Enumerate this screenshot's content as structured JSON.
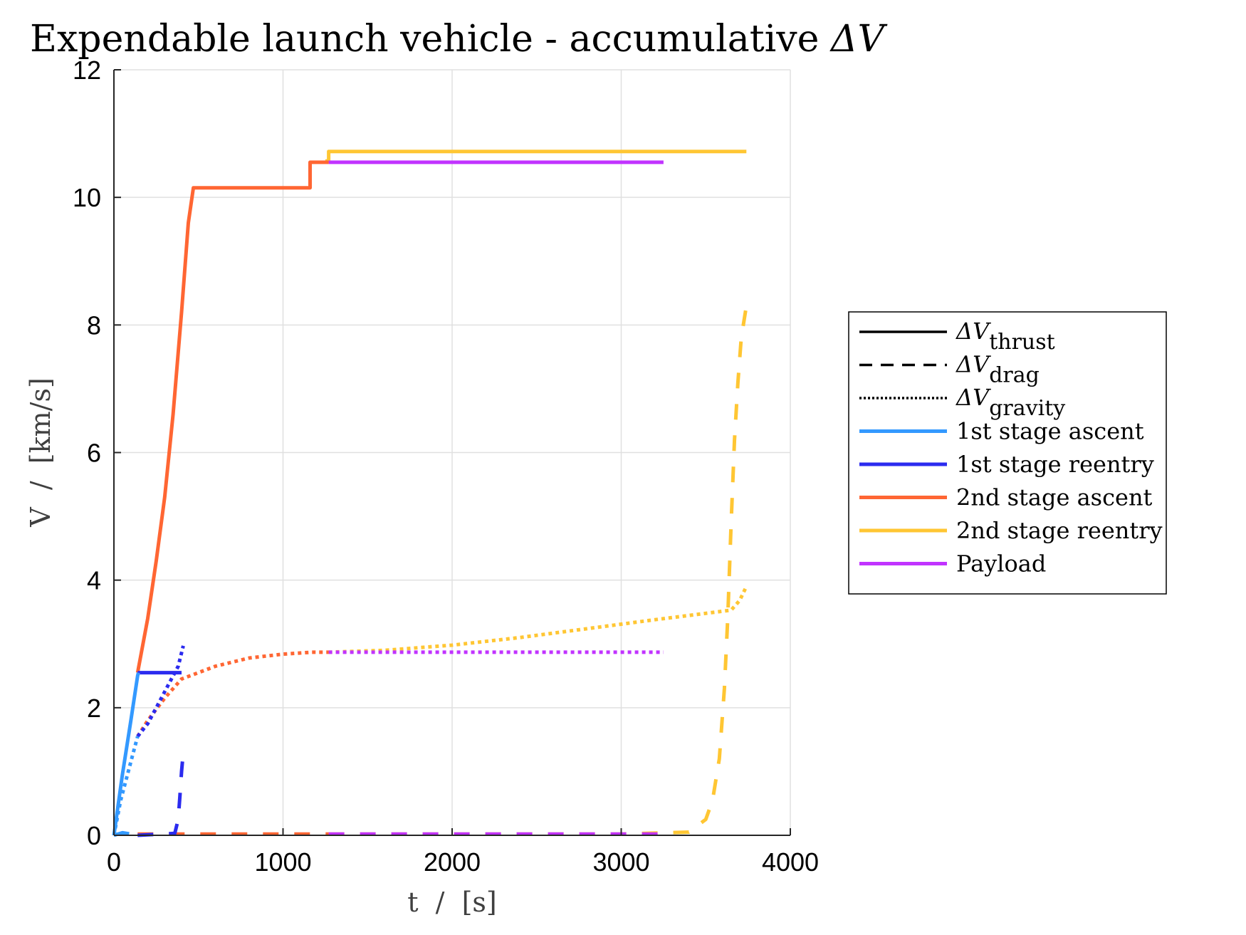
{
  "chart_data": {
    "type": "line",
    "title": "Expendable launch vehicle - accumulative ΔV",
    "title_parts": {
      "text": "Expendable launch vehicle - accumulative ",
      "symbol": "ΔV"
    },
    "xlabel": "t  /  [s]",
    "ylabel": "V  /  [km/s]",
    "xlim": [
      0,
      4000
    ],
    "ylim": [
      0,
      12
    ],
    "xticks": [
      0,
      1000,
      2000,
      3000,
      4000
    ],
    "yticks": [
      0,
      2,
      4,
      6,
      8,
      10,
      12
    ],
    "xtick_labels": [
      "0",
      "1000",
      "2000",
      "3000",
      "4000"
    ],
    "ytick_labels": [
      "0",
      "2",
      "4",
      "6",
      "8",
      "10",
      "12"
    ],
    "grid": true,
    "legend_position": "right",
    "legend_styles": [
      {
        "base": "ΔV",
        "sub": "thrust",
        "dash": "solid"
      },
      {
        "base": "ΔV",
        "sub": "drag",
        "dash": "dashed"
      },
      {
        "base": "ΔV",
        "sub": "gravity",
        "dash": "dotted"
      }
    ],
    "legend_colors": [
      {
        "name": "1st stage ascent",
        "color": "#3399ff"
      },
      {
        "name": "1st stage reentry",
        "color": "#2b2bef"
      },
      {
        "name": "2nd stage ascent",
        "color": "#ff6633"
      },
      {
        "name": "2nd stage reentry",
        "color": "#ffc633"
      },
      {
        "name": "Payload",
        "color": "#c133ff"
      }
    ],
    "series": [
      {
        "group": "2nd stage reentry",
        "kind": "gravity",
        "color": "#ffc633",
        "x": [
          1270,
          1600,
          2000,
          2400,
          2800,
          3200,
          3500,
          3650,
          3700,
          3740
        ],
        "y": [
          2.87,
          2.9,
          2.98,
          3.1,
          3.24,
          3.38,
          3.48,
          3.53,
          3.68,
          3.9
        ]
      },
      {
        "group": "2nd stage reentry",
        "kind": "drag",
        "color": "#ffc633",
        "x": [
          1270,
          2000,
          3000,
          3400,
          3500,
          3540,
          3580,
          3610,
          3630,
          3650,
          3670,
          3690,
          3710,
          3740
        ],
        "y": [
          0.02,
          0.02,
          0.02,
          0.05,
          0.25,
          0.55,
          1.2,
          2.3,
          3.4,
          4.9,
          6.2,
          7.1,
          7.8,
          8.3
        ]
      },
      {
        "group": "2nd stage reentry",
        "kind": "thrust",
        "color": "#ffc633",
        "x": [
          1250,
          1270,
          1270,
          3740
        ],
        "y": [
          10.57,
          10.57,
          10.72,
          10.72
        ]
      },
      {
        "group": "Payload",
        "kind": "gravity",
        "color": "#c133ff",
        "x": [
          1270,
          3250
        ],
        "y": [
          2.87,
          2.87
        ]
      },
      {
        "group": "Payload",
        "kind": "drag",
        "color": "#c133ff",
        "x": [
          1270,
          3250
        ],
        "y": [
          0.02,
          0.02
        ]
      },
      {
        "group": "Payload",
        "kind": "thrust",
        "color": "#c133ff",
        "x": [
          1270,
          3250
        ],
        "y": [
          10.55,
          10.55
        ]
      },
      {
        "group": "2nd stage ascent",
        "kind": "gravity",
        "color": "#ff6633",
        "x": [
          140,
          200,
          300,
          400,
          600,
          800,
          1000,
          1170,
          1270
        ],
        "y": [
          1.55,
          1.8,
          2.15,
          2.45,
          2.65,
          2.78,
          2.84,
          2.87,
          2.87
        ]
      },
      {
        "group": "2nd stage ascent",
        "kind": "drag",
        "color": "#ff6633",
        "x": [
          140,
          1270
        ],
        "y": [
          0.02,
          0.02
        ]
      },
      {
        "group": "2nd stage ascent",
        "kind": "thrust",
        "color": "#ff6633",
        "x": [
          140,
          200,
          250,
          300,
          350,
          400,
          440,
          470,
          1160,
          1160,
          1200,
          1270
        ],
        "y": [
          2.55,
          3.4,
          4.3,
          5.3,
          6.6,
          8.2,
          9.6,
          10.15,
          10.15,
          10.55,
          10.55,
          10.55
        ]
      },
      {
        "group": "1st stage reentry",
        "kind": "gravity",
        "color": "#2b2bef",
        "x": [
          140,
          200,
          260,
          320,
          380,
          410
        ],
        "y": [
          1.55,
          1.75,
          2.05,
          2.35,
          2.65,
          2.97
        ]
      },
      {
        "group": "1st stage reentry",
        "kind": "drag",
        "color": "#2b2bef",
        "x": [
          140,
          360,
          380,
          390,
          400,
          410
        ],
        "y": [
          0.0,
          0.03,
          0.25,
          0.6,
          1.0,
          1.3
        ]
      },
      {
        "group": "1st stage reentry",
        "kind": "thrust",
        "color": "#2b2bef",
        "x": [
          140,
          400
        ],
        "y": [
          2.55,
          2.55
        ]
      },
      {
        "group": "1st stage ascent",
        "kind": "gravity",
        "color": "#3399ff",
        "x": [
          0,
          40,
          80,
          110,
          140
        ],
        "y": [
          0,
          0.55,
          0.95,
          1.25,
          1.55
        ]
      },
      {
        "group": "1st stage ascent",
        "kind": "drag",
        "color": "#3399ff",
        "x": [
          0,
          50,
          100,
          140
        ],
        "y": [
          0,
          0.04,
          0.02,
          0.02
        ]
      },
      {
        "group": "1st stage ascent",
        "kind": "thrust",
        "color": "#3399ff",
        "x": [
          0,
          50,
          100,
          140,
          145
        ],
        "y": [
          0,
          0.95,
          1.8,
          2.5,
          2.55
        ]
      }
    ]
  }
}
